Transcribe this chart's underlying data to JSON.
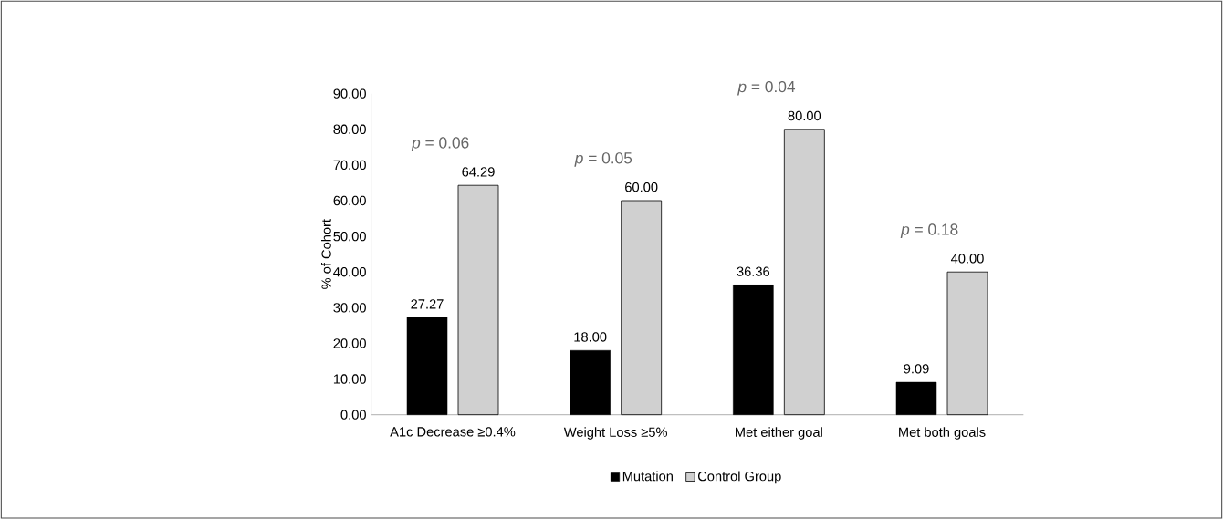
{
  "chart_data": {
    "type": "bar",
    "ylabel": "% of Cohort",
    "categories": [
      "A1c Decrease ≥0.4%",
      "Weight Loss ≥5%",
      "Met either goal",
      "Met both goals"
    ],
    "series": [
      {
        "name": "Mutation",
        "color": "#000000",
        "values": [
          27.27,
          18.0,
          36.36,
          9.09
        ],
        "value_labels": [
          "27.27",
          "18.00",
          "36.36",
          "9.09"
        ]
      },
      {
        "name": "Control Group",
        "color": "#d0d0d0",
        "values": [
          64.29,
          60.0,
          80.0,
          40.0
        ],
        "value_labels": [
          "64.29",
          "60.00",
          "80.00",
          "40.00"
        ]
      }
    ],
    "ylim": [
      0,
      90
    ],
    "yticks": [
      {
        "value": 0,
        "label": "0.00"
      },
      {
        "value": 10,
        "label": "10.00"
      },
      {
        "value": 20,
        "label": "20.00"
      },
      {
        "value": 30,
        "label": "30.00"
      },
      {
        "value": 40,
        "label": "40.00"
      },
      {
        "value": 50,
        "label": "50.00"
      },
      {
        "value": 60,
        "label": "60.00"
      },
      {
        "value": 70,
        "label": "70.00"
      },
      {
        "value": 80,
        "label": "80.00"
      },
      {
        "value": 90,
        "label": "90.00"
      }
    ],
    "annotations": [
      "*p* = 0.06",
      "*p* = 0.05",
      "*p* = 0.04",
      "*p* = 0.18"
    ],
    "grid": false,
    "legend": "bottom"
  }
}
